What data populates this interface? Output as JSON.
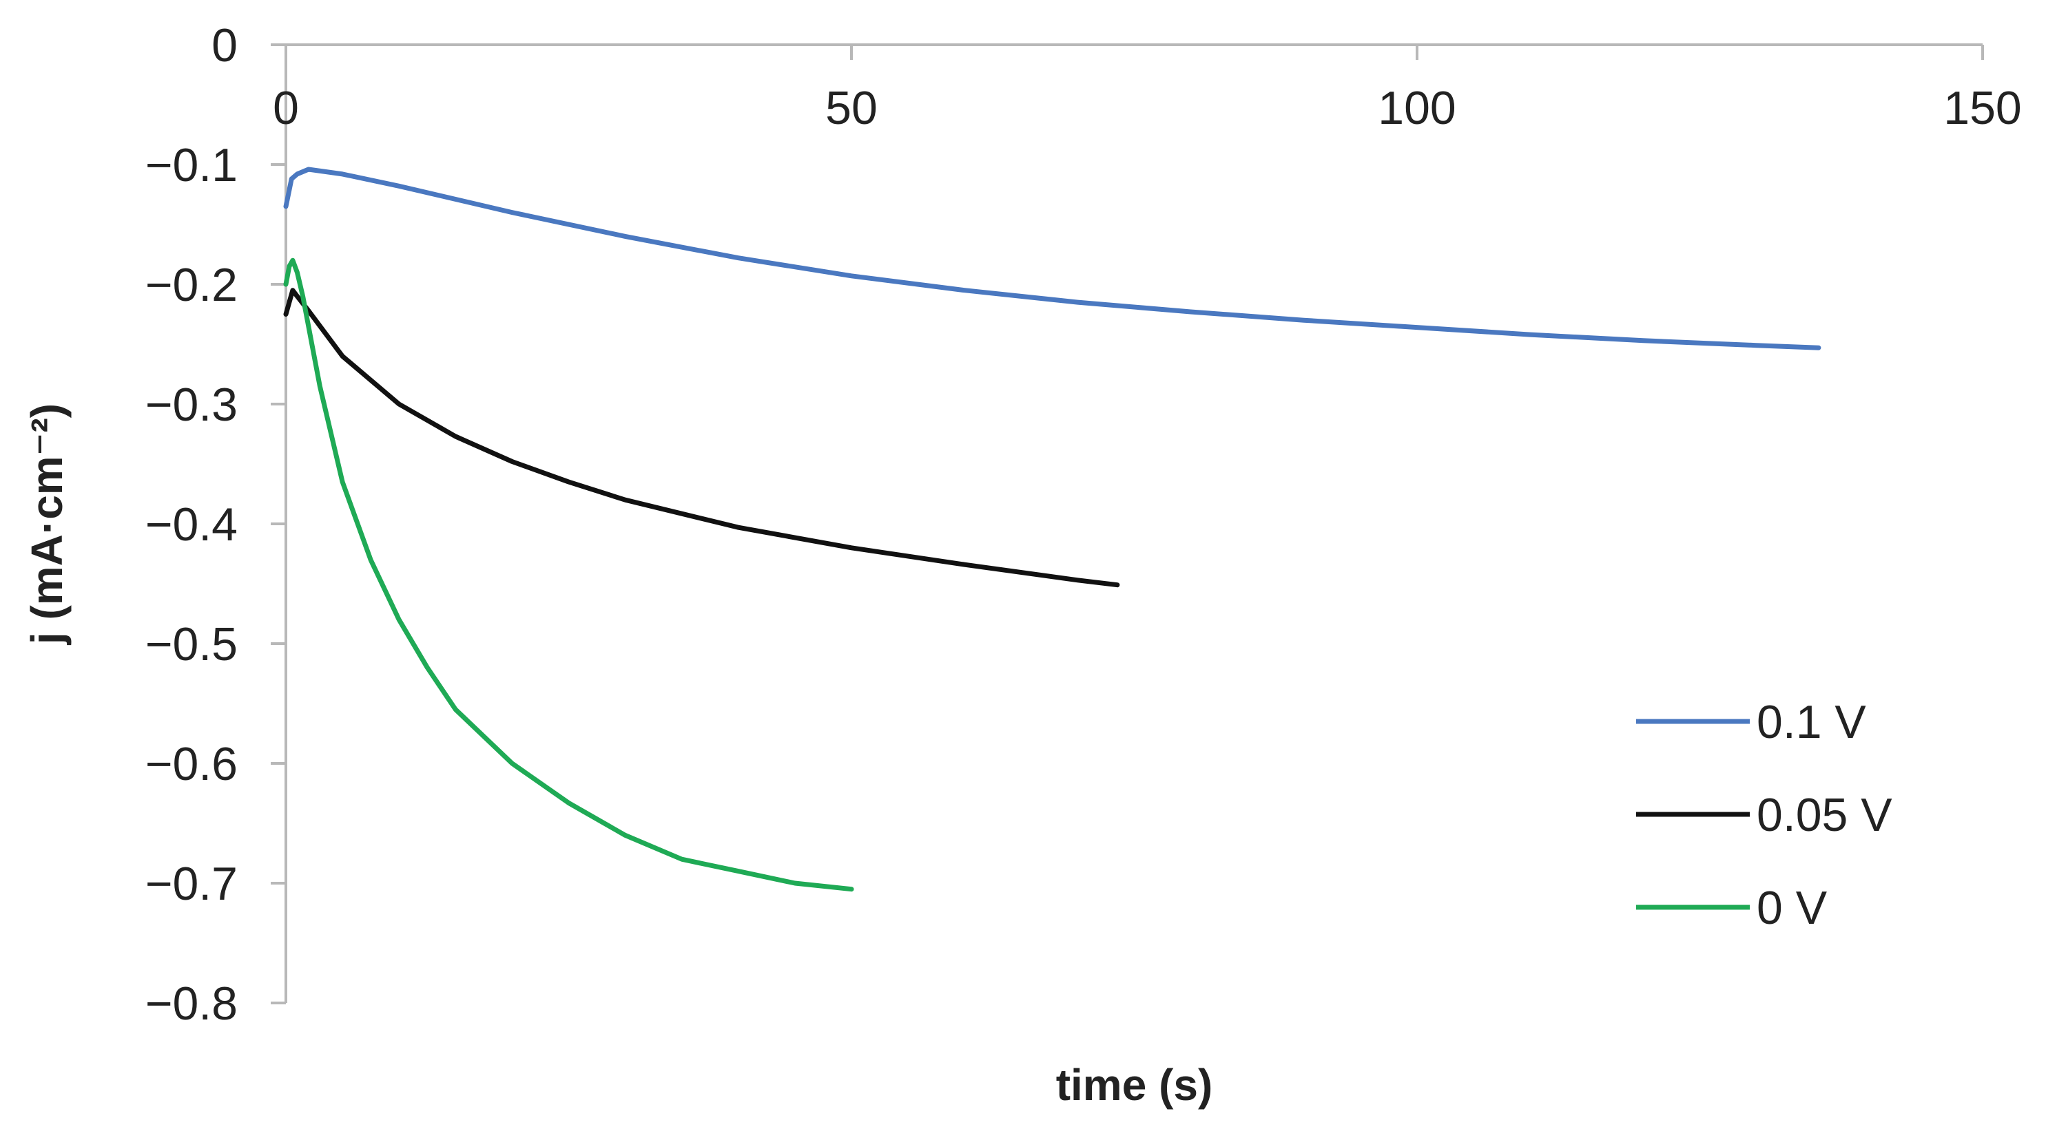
{
  "chart_data": {
    "type": "line",
    "title": "",
    "xlabel": "time (s)",
    "ylabel": "j (mA·cm⁻²)",
    "xlim": [
      0,
      150
    ],
    "ylim": [
      -0.8,
      0
    ],
    "x_ticks": [
      0,
      50,
      100,
      150
    ],
    "x_tick_labels": [
      "0",
      "50",
      "100",
      "150"
    ],
    "y_ticks": [
      0,
      -0.1,
      -0.2,
      -0.3,
      -0.4,
      -0.5,
      -0.6,
      -0.7,
      -0.8
    ],
    "y_tick_labels": [
      "0",
      "−0.1",
      "−0.2",
      "−0.3",
      "−0.4",
      "−0.5",
      "−0.6",
      "−0.7",
      "−0.8"
    ],
    "x_axis_position": "top",
    "grid": false,
    "legend_position": "right",
    "series": [
      {
        "name": "0.1 V",
        "color": "#4a78c0",
        "x": [
          0,
          0.5,
          1,
          2,
          5,
          10,
          20,
          30,
          40,
          50,
          60,
          70,
          80,
          90,
          100,
          110,
          120,
          130,
          135.5
        ],
        "y": [
          -0.135,
          -0.112,
          -0.108,
          -0.104,
          -0.108,
          -0.118,
          -0.14,
          -0.16,
          -0.178,
          -0.193,
          -0.205,
          -0.215,
          -0.223,
          -0.23,
          -0.236,
          -0.242,
          -0.247,
          -0.251,
          -0.253
        ]
      },
      {
        "name": "0.05 V",
        "color": "#111111",
        "x": [
          0,
          0.3,
          0.6,
          1,
          2,
          5,
          10,
          15,
          20,
          25,
          30,
          40,
          50,
          60,
          70,
          73.5
        ],
        "y": [
          -0.225,
          -0.215,
          -0.205,
          -0.21,
          -0.222,
          -0.26,
          -0.3,
          -0.327,
          -0.348,
          -0.365,
          -0.38,
          -0.403,
          -0.42,
          -0.434,
          -0.447,
          -0.451
        ]
      },
      {
        "name": "0 V",
        "color": "#1faa55",
        "x": [
          0,
          0.3,
          0.6,
          1,
          1.5,
          2,
          3,
          5,
          7.5,
          10,
          12.5,
          15,
          20,
          25,
          30,
          35,
          40,
          45,
          50
        ],
        "y": [
          -0.2,
          -0.185,
          -0.18,
          -0.19,
          -0.21,
          -0.235,
          -0.285,
          -0.365,
          -0.43,
          -0.48,
          -0.52,
          -0.555,
          -0.6,
          -0.633,
          -0.66,
          -0.68,
          -0.69,
          -0.7,
          -0.705
        ]
      }
    ]
  }
}
